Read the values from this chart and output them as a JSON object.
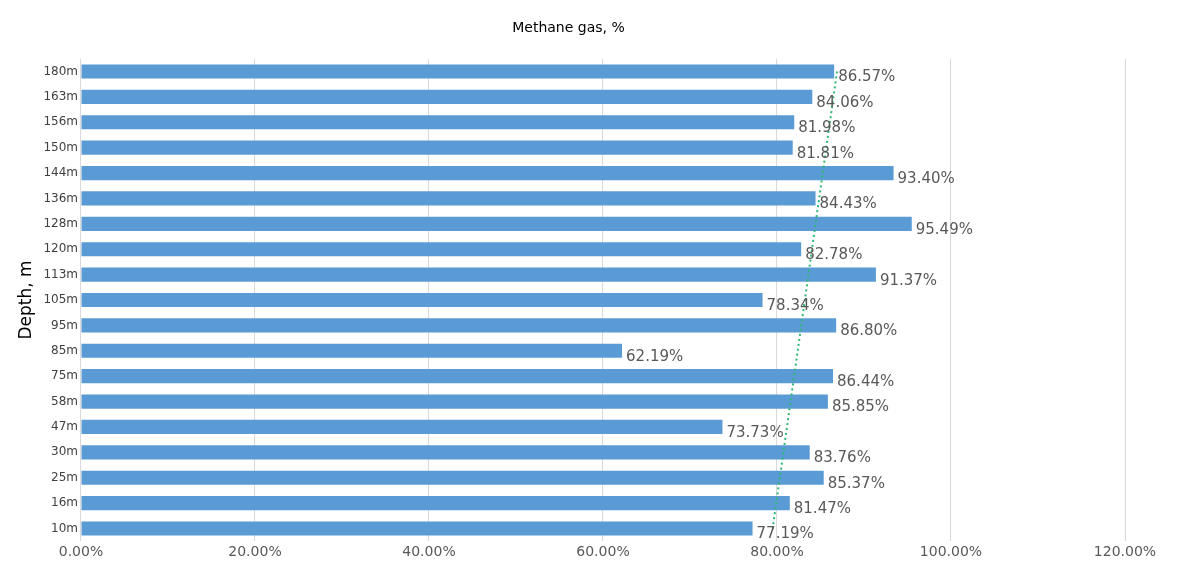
{
  "chart_data": {
    "type": "bar",
    "orientation": "horizontal",
    "title": "Methane gas, %",
    "ylabel": "Depth, m",
    "categories": [
      "180m",
      "163m",
      "156m",
      "150m",
      "144m",
      "136m",
      "128m",
      "120m",
      "113m",
      "105m",
      "95m",
      "85m",
      "75m",
      "58m",
      "47m",
      "30m",
      "25m",
      "16m",
      "10m"
    ],
    "series": [
      {
        "color": "#5b9bd5",
        "values": [
          86.57,
          84.06,
          81.98,
          81.81,
          93.4,
          84.43,
          95.49,
          82.78,
          91.37,
          78.34,
          86.8,
          62.19,
          86.44,
          85.85,
          73.73,
          83.76,
          85.37,
          81.47,
          77.19
        ],
        "value_labels": [
          "86.57%",
          "84.06%",
          "81.98%",
          "81.81%",
          "93.40%",
          "84.43%",
          "95.49%",
          "82.78%",
          "91.37%",
          "78.34%",
          "86.80%",
          "62.19%",
          "86.44%",
          "85.85%",
          "73.73%",
          "83.76%",
          "85.37%",
          "81.47%",
          "77.19%"
        ]
      },
      {
        "type": "line",
        "color": "#2eb872",
        "line_style": "dotted",
        "marker": "none",
        "x": [
          "180m",
          "10m"
        ],
        "values": [
          86.9,
          79.5
        ]
      }
    ],
    "xlim": [
      0,
      120
    ],
    "xticks": [
      {
        "value": 0,
        "label": "0.00%"
      },
      {
        "value": 20,
        "label": "20.00%"
      },
      {
        "value": 40,
        "label": "40.00%"
      },
      {
        "value": 60,
        "label": "60.00%"
      },
      {
        "value": 80,
        "label": "80.00%"
      },
      {
        "value": 100,
        "label": "100.00%"
      },
      {
        "value": 120,
        "label": "120.00%"
      }
    ],
    "grid": "x",
    "legend": false
  }
}
